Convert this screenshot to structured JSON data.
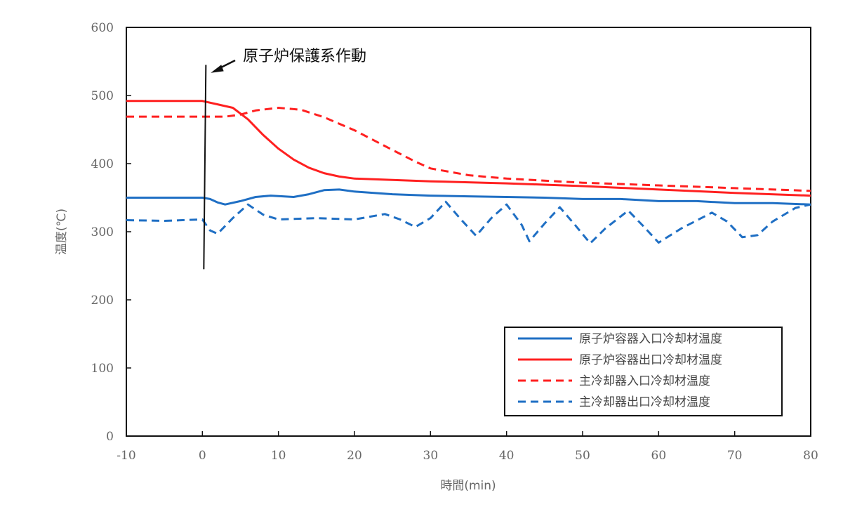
{
  "chart_data": {
    "type": "line",
    "title": "",
    "xlabel": "時間(min)",
    "ylabel": "温度(℃)",
    "xlim": [
      -10,
      80
    ],
    "ylim": [
      0,
      600
    ],
    "x_ticks": [
      -10,
      0,
      10,
      20,
      30,
      40,
      50,
      60,
      70,
      80
    ],
    "y_ticks": [
      0,
      100,
      200,
      300,
      400,
      500,
      600
    ],
    "x_tick_labels": [
      "-10",
      "0",
      "10",
      "20",
      "30",
      "40",
      "50",
      "60",
      "70",
      "80"
    ],
    "y_tick_labels": [
      "0",
      "100",
      "200",
      "300",
      "400",
      "500",
      "600"
    ],
    "grid": false,
    "legend_position": "bottom-right",
    "annotation": {
      "text": "原子炉保護系作動",
      "x": 0,
      "y_from": 245,
      "y_to": 545
    },
    "series": [
      {
        "name": "原子炉容器入口冷却材温度",
        "color": "#1f6fc4",
        "style": "solid",
        "points": [
          [
            -10,
            350
          ],
          [
            -5,
            350
          ],
          [
            0,
            350
          ],
          [
            1,
            348
          ],
          [
            2,
            343
          ],
          [
            3,
            340
          ],
          [
            5,
            345
          ],
          [
            7,
            351
          ],
          [
            9,
            353
          ],
          [
            12,
            351
          ],
          [
            14,
            355
          ],
          [
            16,
            361
          ],
          [
            18,
            362
          ],
          [
            20,
            359
          ],
          [
            25,
            355
          ],
          [
            30,
            353
          ],
          [
            35,
            352
          ],
          [
            40,
            351
          ],
          [
            45,
            350
          ],
          [
            50,
            348
          ],
          [
            55,
            348
          ],
          [
            60,
            345
          ],
          [
            65,
            345
          ],
          [
            70,
            342
          ],
          [
            75,
            342
          ],
          [
            80,
            340
          ]
        ]
      },
      {
        "name": "原子炉容器出口冷却材温度",
        "color": "#ff2020",
        "style": "solid",
        "points": [
          [
            -10,
            492
          ],
          [
            -5,
            492
          ],
          [
            0,
            492
          ],
          [
            2,
            487
          ],
          [
            4,
            482
          ],
          [
            6,
            465
          ],
          [
            8,
            442
          ],
          [
            10,
            422
          ],
          [
            12,
            406
          ],
          [
            14,
            394
          ],
          [
            16,
            386
          ],
          [
            18,
            381
          ],
          [
            20,
            378
          ],
          [
            25,
            376
          ],
          [
            30,
            374
          ],
          [
            40,
            371
          ],
          [
            50,
            367
          ],
          [
            60,
            362
          ],
          [
            70,
            357
          ],
          [
            80,
            353
          ]
        ]
      },
      {
        "name": "主冷却器入口冷却材温度",
        "color": "#ff2020",
        "style": "dashed",
        "points": [
          [
            -10,
            469
          ],
          [
            0,
            469
          ],
          [
            3,
            469
          ],
          [
            5,
            472
          ],
          [
            7,
            478
          ],
          [
            10,
            482
          ],
          [
            13,
            479
          ],
          [
            16,
            468
          ],
          [
            20,
            449
          ],
          [
            25,
            420
          ],
          [
            28,
            403
          ],
          [
            30,
            393
          ],
          [
            35,
            383
          ],
          [
            40,
            378
          ],
          [
            50,
            372
          ],
          [
            60,
            368
          ],
          [
            70,
            364
          ],
          [
            80,
            360
          ]
        ]
      },
      {
        "name": "主冷却器出口冷却材温度",
        "color": "#1f6fc4",
        "style": "dashed",
        "points": [
          [
            -10,
            317
          ],
          [
            -5,
            316
          ],
          [
            0,
            318
          ],
          [
            1,
            302
          ],
          [
            2,
            297
          ],
          [
            4,
            320
          ],
          [
            6,
            340
          ],
          [
            8,
            325
          ],
          [
            10,
            318
          ],
          [
            15,
            320
          ],
          [
            20,
            318
          ],
          [
            24,
            326
          ],
          [
            26,
            318
          ],
          [
            28,
            307
          ],
          [
            30,
            320
          ],
          [
            32,
            344
          ],
          [
            34,
            318
          ],
          [
            36,
            294
          ],
          [
            38,
            320
          ],
          [
            40,
            340
          ],
          [
            42,
            310
          ],
          [
            43,
            286
          ],
          [
            45,
            312
          ],
          [
            47,
            336
          ],
          [
            49,
            310
          ],
          [
            51,
            283
          ],
          [
            53,
            305
          ],
          [
            56,
            331
          ],
          [
            58,
            308
          ],
          [
            60,
            284
          ],
          [
            63,
            305
          ],
          [
            67,
            328
          ],
          [
            69,
            315
          ],
          [
            71,
            292
          ],
          [
            73,
            295
          ],
          [
            75,
            315
          ],
          [
            78,
            335
          ],
          [
            80,
            340
          ]
        ]
      }
    ]
  }
}
